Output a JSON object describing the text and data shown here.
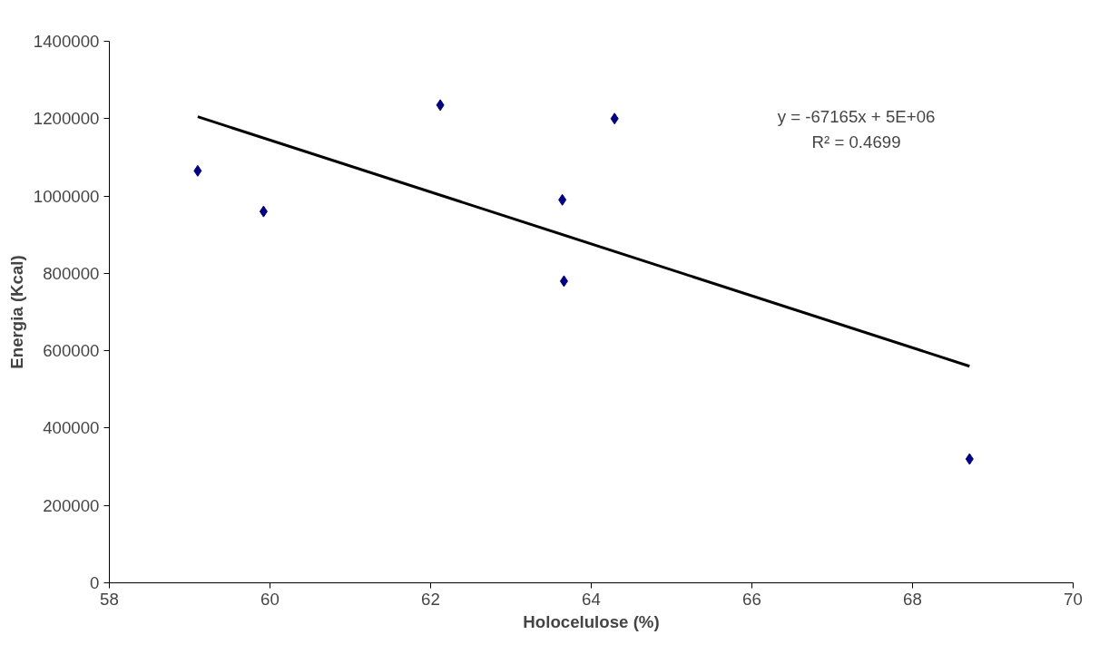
{
  "chart_data": {
    "type": "scatter",
    "xlabel": "Holocelulose (%)",
    "ylabel": "Energia (Kcal)",
    "series": [
      {
        "color": "#000080",
        "marker": "diamond",
        "x": [
          59.1,
          59.92,
          62.12,
          63.64,
          63.66,
          64.29,
          68.71
        ],
        "values": [
          1065000,
          960000,
          1235000,
          990000,
          780000,
          1200000,
          320000
        ]
      },
      {
        "type": "line",
        "color": "#000000",
        "x": [
          59.1,
          68.71
        ],
        "values": [
          1205000,
          560000
        ]
      }
    ],
    "xlim": [
      58,
      70
    ],
    "xticks": [
      58,
      60,
      62,
      64,
      66,
      68,
      70
    ],
    "ylim": [
      0,
      1400000
    ],
    "yticks": [
      0,
      200000,
      400000,
      600000,
      800000,
      1000000,
      1200000,
      1400000
    ],
    "annotations": [
      "y = -67165x + 5E+06",
      "R² = 0.4699"
    ],
    "grid": false
  }
}
